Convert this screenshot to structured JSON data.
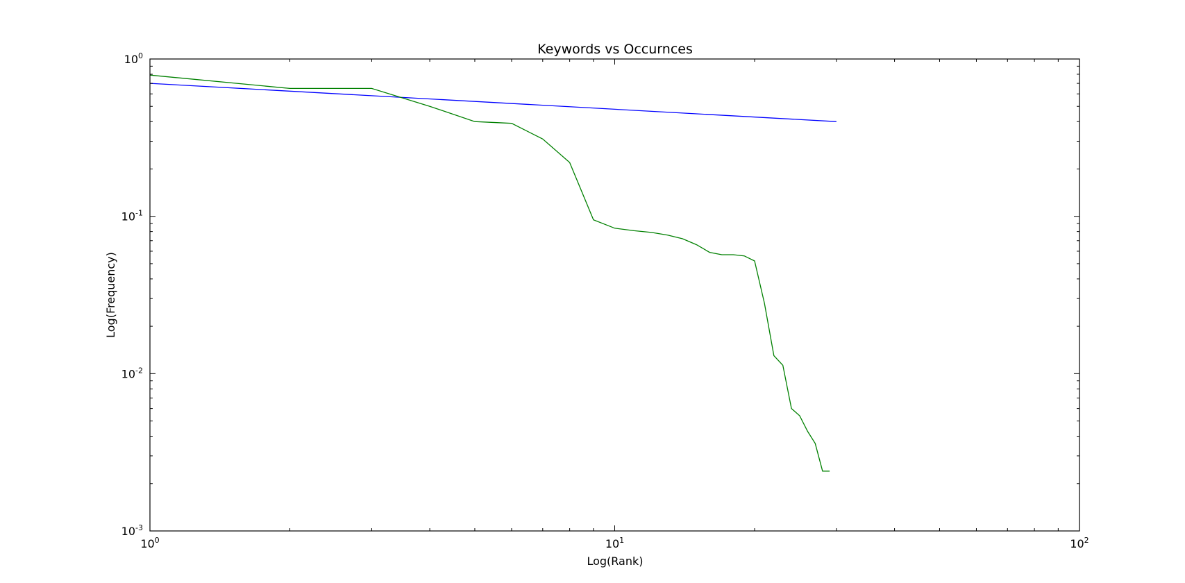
{
  "chart_data": {
    "type": "line",
    "title": "Keywords vs Occurnces",
    "xlabel": "Log(Rank)",
    "ylabel": "Log(Frequency)",
    "xscale": "log",
    "yscale": "log",
    "xlim": [
      1,
      100
    ],
    "ylim": [
      0.001,
      1
    ],
    "grid": false,
    "legend": "none",
    "x_ticks": [
      {
        "base": "10",
        "exp": "0",
        "value": 1
      },
      {
        "base": "10",
        "exp": "1",
        "value": 10
      },
      {
        "base": "10",
        "exp": "2",
        "value": 100
      }
    ],
    "y_ticks": [
      {
        "base": "10",
        "exp": "0",
        "value": 1
      },
      {
        "base": "10",
        "exp": "-1",
        "value": 0.1
      },
      {
        "base": "10",
        "exp": "-2",
        "value": 0.01
      },
      {
        "base": "10",
        "exp": "-3",
        "value": 0.001
      }
    ],
    "series": [
      {
        "color": "#0000ff",
        "x": [
          1,
          30
        ],
        "y": [
          0.7,
          0.4
        ]
      },
      {
        "color": "#008000",
        "x": [
          1,
          2,
          3,
          4,
          5,
          6,
          7,
          8,
          9,
          10,
          11,
          12,
          13,
          14,
          15,
          16,
          17,
          18,
          19,
          20,
          21,
          22,
          23,
          24,
          25,
          26,
          27,
          28,
          29
        ],
        "y": [
          0.79,
          0.65,
          0.65,
          0.5,
          0.4,
          0.39,
          0.31,
          0.22,
          0.095,
          0.084,
          0.081,
          0.079,
          0.076,
          0.072,
          0.066,
          0.059,
          0.057,
          0.057,
          0.056,
          0.052,
          0.028,
          0.013,
          0.0113,
          0.006,
          0.0054,
          0.0043,
          0.0036,
          0.0024,
          0.0024
        ]
      }
    ]
  }
}
